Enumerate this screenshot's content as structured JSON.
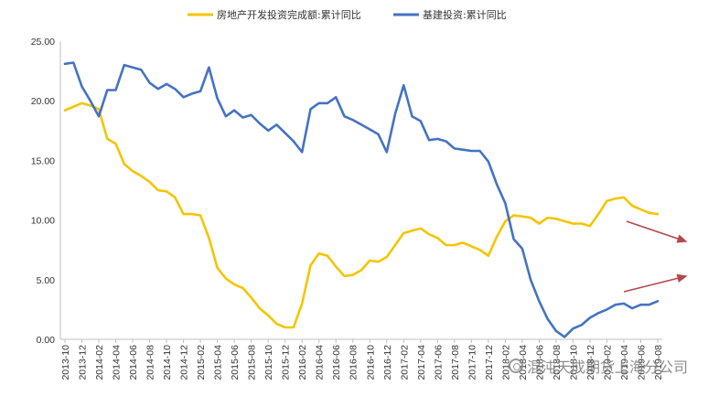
{
  "chart_data": {
    "type": "line",
    "title": "",
    "xlabel": "",
    "ylabel": "",
    "ylim": [
      0,
      25
    ],
    "y_ticks": [
      "0.00",
      "5.00",
      "10.00",
      "15.00",
      "20.00",
      "25.00"
    ],
    "grid": false,
    "legend_position": "top",
    "x_tick_labels": [
      "2013-10",
      "2013-12",
      "2014-02",
      "2014-04",
      "2014-06",
      "2014-08",
      "2014-10",
      "2014-12",
      "2015-02",
      "2015-04",
      "2015-06",
      "2015-08",
      "2015-10",
      "2015-12",
      "2016-02",
      "2016-04",
      "2016-06",
      "2016-08",
      "2016-10",
      "2016-12",
      "2017-02",
      "2017-04",
      "2017-06",
      "2017-08",
      "2017-10",
      "2017-12",
      "2018-02",
      "2018-04",
      "2018-06",
      "2018-08",
      "2018-10",
      "2018-12",
      "2019-02",
      "2019-04",
      "2019-06",
      "2019-08"
    ],
    "x": [
      "2013-10",
      "2013-11",
      "2013-12",
      "2014-01",
      "2014-02",
      "2014-03",
      "2014-04",
      "2014-05",
      "2014-06",
      "2014-07",
      "2014-08",
      "2014-09",
      "2014-10",
      "2014-11",
      "2014-12",
      "2015-01",
      "2015-02",
      "2015-03",
      "2015-04",
      "2015-05",
      "2015-06",
      "2015-07",
      "2015-08",
      "2015-09",
      "2015-10",
      "2015-11",
      "2015-12",
      "2016-01",
      "2016-02",
      "2016-03",
      "2016-04",
      "2016-05",
      "2016-06",
      "2016-07",
      "2016-08",
      "2016-09",
      "2016-10",
      "2016-11",
      "2016-12",
      "2017-01",
      "2017-02",
      "2017-03",
      "2017-04",
      "2017-05",
      "2017-06",
      "2017-07",
      "2017-08",
      "2017-09",
      "2017-10",
      "2017-11",
      "2017-12",
      "2018-01",
      "2018-02",
      "2018-03",
      "2018-04",
      "2018-05",
      "2018-06",
      "2018-07",
      "2018-08",
      "2018-09",
      "2018-10",
      "2018-11",
      "2018-12",
      "2019-01",
      "2019-02",
      "2019-03",
      "2019-04",
      "2019-05",
      "2019-06",
      "2019-07",
      "2019-08"
    ],
    "series": [
      {
        "name": "房地产开发投资完成额:累计同比",
        "color": "#F5C400",
        "values": [
          19.2,
          19.5,
          19.8,
          19.6,
          19.3,
          16.8,
          16.4,
          14.7,
          14.1,
          13.7,
          13.2,
          12.5,
          12.4,
          11.9,
          10.5,
          10.5,
          10.4,
          8.5,
          6.0,
          5.1,
          4.6,
          4.3,
          3.5,
          2.6,
          2.0,
          1.3,
          1.0,
          1.0,
          3.0,
          6.2,
          7.2,
          7.0,
          6.1,
          5.3,
          5.4,
          5.8,
          6.6,
          6.5,
          6.9,
          7.9,
          8.9,
          9.1,
          9.3,
          8.8,
          8.5,
          7.9,
          7.9,
          8.1,
          7.8,
          7.5,
          7.0,
          8.6,
          9.9,
          10.4,
          10.3,
          10.2,
          9.7,
          10.2,
          10.1,
          9.9,
          9.7,
          9.7,
          9.5,
          10.5,
          11.6,
          11.8,
          11.9,
          11.2,
          10.9,
          10.6,
          10.5
        ]
      },
      {
        "name": "基建投资:累计同比",
        "color": "#4472C4",
        "values": [
          23.1,
          23.2,
          21.2,
          20.0,
          18.7,
          20.9,
          20.9,
          23.0,
          22.8,
          22.6,
          21.5,
          21.0,
          21.4,
          21.0,
          20.3,
          20.6,
          20.8,
          22.8,
          20.2,
          18.7,
          19.2,
          18.6,
          18.8,
          18.1,
          17.5,
          18.0,
          17.3,
          16.6,
          15.7,
          19.3,
          19.8,
          19.8,
          20.3,
          18.7,
          18.4,
          18.0,
          17.6,
          17.2,
          15.7,
          18.9,
          21.3,
          18.7,
          18.3,
          16.7,
          16.8,
          16.6,
          16.0,
          15.9,
          15.8,
          15.8,
          14.9,
          13.0,
          11.4,
          8.4,
          7.6,
          5.0,
          3.2,
          1.7,
          0.7,
          0.2,
          0.9,
          1.2,
          1.8,
          2.2,
          2.5,
          2.9,
          3.0,
          2.6,
          2.9,
          2.9,
          3.2
        ]
      }
    ]
  },
  "annotations": {
    "arrow_color": "#B5474B",
    "arrows": [
      {
        "direction": "down-right"
      },
      {
        "direction": "up-right"
      }
    ]
  },
  "watermark": {
    "text": "混沌天成期货上海分公司"
  }
}
